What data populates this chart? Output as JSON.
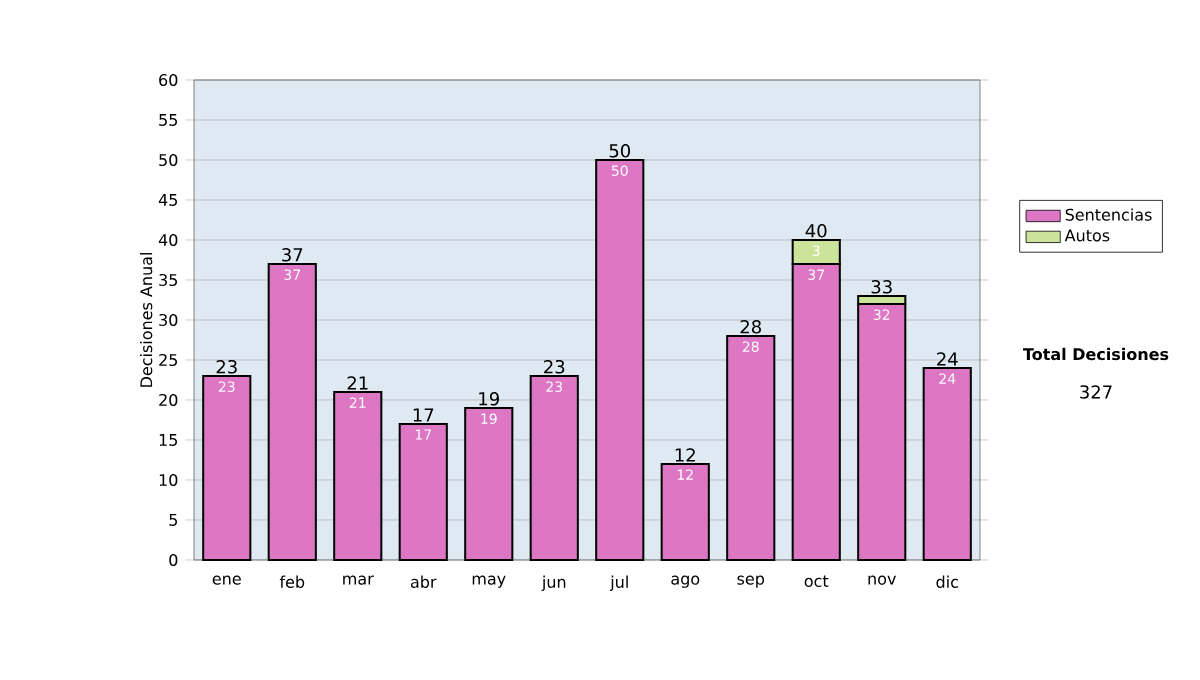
{
  "chart_data": {
    "type": "bar",
    "stacked": true,
    "ylabel": "Decisiones Anual",
    "categories": [
      "ene",
      "feb",
      "mar",
      "abr",
      "may",
      "jun",
      "jul",
      "ago",
      "sep",
      "oct",
      "nov",
      "dic"
    ],
    "series": [
      {
        "name": "Sentencias",
        "color": "#dd77c4",
        "values": [
          23,
          37,
          21,
          17,
          19,
          23,
          50,
          12,
          28,
          37,
          32,
          24
        ],
        "value_labels": [
          "23",
          "37",
          "21",
          "17",
          "19",
          "23",
          "50",
          "12",
          "28",
          "37",
          "32",
          "24"
        ]
      },
      {
        "name": "Autos",
        "color": "#cce39a",
        "values": [
          null,
          null,
          null,
          null,
          null,
          null,
          null,
          null,
          null,
          3,
          1,
          null
        ],
        "value_labels": [
          null,
          null,
          null,
          null,
          null,
          null,
          null,
          null,
          null,
          "3",
          null,
          null
        ]
      }
    ],
    "totals": [
      "23",
      "37",
      "21",
      "17",
      "19",
      "23",
      "50",
      "12",
      "28",
      "40",
      "33",
      "24"
    ],
    "ylim": [
      0,
      60
    ],
    "yticks": [
      0,
      5,
      10,
      15,
      20,
      25,
      30,
      35,
      40,
      45,
      50,
      55,
      60
    ],
    "grid": "y",
    "legend": "right",
    "annotations": [
      "Total Decisiones",
      "327"
    ]
  }
}
